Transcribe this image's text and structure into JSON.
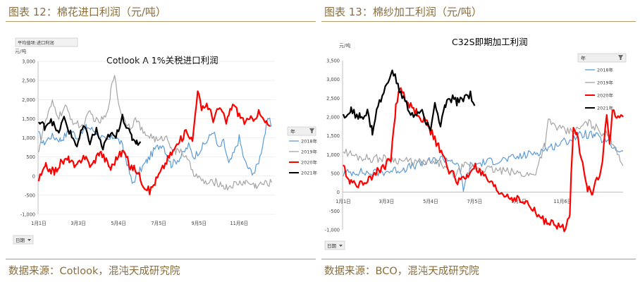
{
  "left_figure": {
    "caption": "图表 12：棉花进口利润（元/吨）",
    "source": "数据来源：Cotlook，混沌天成研究院"
  },
  "right_figure": {
    "caption": "图表 13：棉纱加工利润（元/吨）",
    "source": "数据来源：BCO，混沌天成研究院"
  },
  "colors": {
    "caption": "#8a6d3b",
    "rule": "#b89a6a",
    "s2018": "#5b9bd5",
    "s2019": "#a5a5a5",
    "s2020": "#ff0000",
    "s2021": "#000000"
  },
  "chart_data": [
    {
      "type": "line",
      "title": "Cotlook A 1%关税进口利润",
      "top_button": "平均值项:进口利润",
      "ylabel": "元/吨",
      "ylim": [
        -1000,
        3000
      ],
      "yticks": [
        "3,000",
        "2,500",
        "2,000",
        "1,500",
        "1,000",
        "500",
        "0",
        "-500",
        "-1,000"
      ],
      "xticks": [
        "1月1日",
        "3月3日",
        "5月4日",
        "7月5日",
        "9月5日",
        "11月6日"
      ],
      "legend_header": "年",
      "filter_button": "日期",
      "grid": true,
      "legend_position": "right",
      "series": [
        {
          "name": "2018年",
          "color": "#5b9bd5",
          "anchors": [
            [
              1,
              1100
            ],
            [
              8,
              850
            ],
            [
              20,
              1050
            ],
            [
              35,
              950
            ],
            [
              50,
              1200
            ],
            [
              62,
              1000
            ],
            [
              75,
              1300
            ],
            [
              90,
              1150
            ],
            [
              105,
              900
            ],
            [
              118,
              1050
            ],
            [
              128,
              850
            ],
            [
              135,
              500
            ],
            [
              145,
              -200
            ],
            [
              155,
              100
            ],
            [
              168,
              400
            ],
            [
              180,
              700
            ],
            [
              192,
              850
            ],
            [
              205,
              300
            ],
            [
              220,
              500
            ],
            [
              232,
              800
            ],
            [
              240,
              500
            ],
            [
              250,
              700
            ],
            [
              262,
              950
            ],
            [
              270,
              1200
            ],
            [
              278,
              700
            ],
            [
              286,
              900
            ],
            [
              294,
              300
            ],
            [
              302,
              600
            ],
            [
              310,
              1000
            ],
            [
              318,
              400
            ],
            [
              326,
              150
            ],
            [
              334,
              100
            ],
            [
              342,
              500
            ],
            [
              348,
              1000
            ],
            [
              355,
              1500
            ],
            [
              360,
              1300
            ]
          ]
        },
        {
          "name": "2019年",
          "color": "#a5a5a5",
          "anchors": [
            [
              1,
              700
            ],
            [
              10,
              1350
            ],
            [
              22,
              1900
            ],
            [
              32,
              1550
            ],
            [
              42,
              1800
            ],
            [
              55,
              1400
            ],
            [
              68,
              1300
            ],
            [
              80,
              1650
            ],
            [
              92,
              1400
            ],
            [
              105,
              1550
            ],
            [
              112,
              2200
            ],
            [
              118,
              2700
            ],
            [
              124,
              1900
            ],
            [
              132,
              1500
            ],
            [
              142,
              1300
            ],
            [
              152,
              1500
            ],
            [
              162,
              1100
            ],
            [
              174,
              1050
            ],
            [
              186,
              900
            ],
            [
              196,
              1050
            ],
            [
              205,
              800
            ],
            [
              212,
              600
            ],
            [
              220,
              700
            ],
            [
              230,
              400
            ],
            [
              240,
              100
            ],
            [
              250,
              -100
            ],
            [
              262,
              -200
            ],
            [
              275,
              -150
            ],
            [
              290,
              -300
            ],
            [
              305,
              -200
            ],
            [
              320,
              -150
            ],
            [
              335,
              -250
            ],
            [
              348,
              -200
            ],
            [
              360,
              -170
            ]
          ]
        },
        {
          "name": "2020年",
          "color": "#ff0000",
          "anchors": [
            [
              1,
              -100
            ],
            [
              12,
              250
            ],
            [
              25,
              100
            ],
            [
              35,
              350
            ],
            [
              48,
              450
            ],
            [
              58,
              200
            ],
            [
              70,
              550
            ],
            [
              82,
              250
            ],
            [
              95,
              650
            ],
            [
              105,
              400
            ],
            [
              112,
              200
            ],
            [
              122,
              500
            ],
            [
              132,
              650
            ],
            [
              142,
              250
            ],
            [
              152,
              150
            ],
            [
              162,
              -200
            ],
            [
              172,
              -400
            ],
            [
              182,
              -100
            ],
            [
              192,
              200
            ],
            [
              200,
              450
            ],
            [
              210,
              700
            ],
            [
              220,
              950
            ],
            [
              230,
              1200
            ],
            [
              238,
              900
            ],
            [
              246,
              2300
            ],
            [
              252,
              1700
            ],
            [
              260,
              1900
            ],
            [
              270,
              1500
            ],
            [
              280,
              1800
            ],
            [
              290,
              1400
            ],
            [
              300,
              1900
            ],
            [
              310,
              1600
            ],
            [
              320,
              1400
            ],
            [
              330,
              1500
            ],
            [
              340,
              1650
            ],
            [
              350,
              1400
            ],
            [
              358,
              1300
            ]
          ]
        },
        {
          "name": "2021年",
          "color": "#000000",
          "anchors": [
            [
              1,
              1400
            ],
            [
              10,
              1300
            ],
            [
              20,
              1500
            ],
            [
              30,
              1100
            ],
            [
              40,
              1500
            ],
            [
              50,
              1100
            ],
            [
              60,
              800
            ],
            [
              70,
              1300
            ],
            [
              80,
              900
            ],
            [
              90,
              1200
            ],
            [
              100,
              700
            ],
            [
              110,
              1100
            ],
            [
              120,
              1000
            ],
            [
              130,
              1600
            ],
            [
              138,
              1200
            ],
            [
              145,
              1000
            ],
            [
              152,
              900
            ],
            [
              158,
              900
            ]
          ]
        }
      ]
    },
    {
      "type": "line",
      "title": "C32S即期加工利润",
      "ylabel": "元/吨",
      "ylim": [
        -1000,
        3500
      ],
      "yticks": [
        "3,500",
        "3,000",
        "2,500",
        "2,000",
        "1,500",
        "1,000",
        "500",
        "0",
        "-500",
        "-1,000"
      ],
      "xticks": [
        "1月1日",
        "3月3日",
        "5月4日",
        "7月5日",
        "9月5日",
        "11月6日"
      ],
      "legend_header": "年",
      "filter_button": "日期",
      "grid": false,
      "legend_position": "right",
      "series": [
        {
          "name": "2018年",
          "color": "#5b9bd5",
          "anchors": [
            [
              1,
              500
            ],
            [
              20,
              550
            ],
            [
              40,
              500
            ],
            [
              60,
              550
            ],
            [
              80,
              600
            ],
            [
              100,
              700
            ],
            [
              120,
              800
            ],
            [
              140,
              900
            ],
            [
              155,
              850
            ],
            [
              165,
              600
            ],
            [
              170,
              100
            ],
            [
              180,
              700
            ],
            [
              200,
              800
            ],
            [
              220,
              850
            ],
            [
              240,
              900
            ],
            [
              260,
              1000
            ],
            [
              280,
              1100
            ],
            [
              300,
              1250
            ],
            [
              320,
              1400
            ],
            [
              340,
              1550
            ],
            [
              355,
              1500
            ],
            [
              365,
              1400
            ],
            [
              375,
              1300
            ],
            [
              385,
              1150
            ],
            [
              395,
              1100
            ]
          ]
        },
        {
          "name": "2019年",
          "color": "#a5a5a5",
          "anchors": [
            [
              1,
              1100
            ],
            [
              20,
              950
            ],
            [
              40,
              900
            ],
            [
              60,
              900
            ],
            [
              80,
              850
            ],
            [
              100,
              800
            ],
            [
              120,
              780
            ],
            [
              140,
              760
            ],
            [
              150,
              500
            ],
            [
              160,
              450
            ],
            [
              170,
              700
            ],
            [
              190,
              650
            ],
            [
              210,
              600
            ],
            [
              230,
              550
            ],
            [
              250,
              500
            ],
            [
              270,
              450
            ],
            [
              285,
              1300
            ],
            [
              290,
              1900
            ],
            [
              300,
              1750
            ],
            [
              315,
              1600
            ],
            [
              330,
              1650
            ],
            [
              345,
              1850
            ],
            [
              355,
              1750
            ],
            [
              365,
              1600
            ],
            [
              375,
              1500
            ],
            [
              385,
              1200
            ],
            [
              395,
              700
            ]
          ]
        },
        {
          "name": "2020年",
          "color": "#ff0000",
          "anchors": [
            [
              1,
              700
            ],
            [
              10,
              300
            ],
            [
              25,
              200
            ],
            [
              45,
              500
            ],
            [
              60,
              700
            ],
            [
              68,
              900
            ],
            [
              75,
              2300
            ],
            [
              82,
              2800
            ],
            [
              90,
              2400
            ],
            [
              105,
              2100
            ],
            [
              120,
              1800
            ],
            [
              135,
              1200
            ],
            [
              150,
              600
            ],
            [
              162,
              300
            ],
            [
              175,
              400
            ],
            [
              185,
              700
            ],
            [
              195,
              500
            ],
            [
              205,
              300
            ],
            [
              220,
              0
            ],
            [
              240,
              -150
            ],
            [
              260,
              -300
            ],
            [
              280,
              -700
            ],
            [
              300,
              -900
            ],
            [
              315,
              -950
            ],
            [
              320,
              -500
            ],
            [
              325,
              1800
            ],
            [
              330,
              1600
            ],
            [
              338,
              700
            ],
            [
              345,
              100
            ],
            [
              352,
              0
            ],
            [
              360,
              400
            ],
            [
              366,
              800
            ],
            [
              372,
              2100
            ],
            [
              376,
              1200
            ],
            [
              380,
              2100
            ],
            [
              390,
              2050
            ],
            [
              395,
              2000
            ]
          ]
        },
        {
          "name": "2021年",
          "color": "#000000",
          "anchors": [
            [
              1,
              2000
            ],
            [
              12,
              2150
            ],
            [
              25,
              2000
            ],
            [
              35,
              2100
            ],
            [
              42,
              1600
            ],
            [
              50,
              2300
            ],
            [
              58,
              2600
            ],
            [
              66,
              3100
            ],
            [
              72,
              3150
            ],
            [
              80,
              2700
            ],
            [
              88,
              2400
            ],
            [
              96,
              2100
            ],
            [
              104,
              2000
            ],
            [
              112,
              2150
            ],
            [
              118,
              1900
            ],
            [
              124,
              1700
            ],
            [
              130,
              2300
            ],
            [
              138,
              1800
            ],
            [
              145,
              2300
            ],
            [
              155,
              2500
            ],
            [
              162,
              2400
            ],
            [
              170,
              2500
            ],
            [
              180,
              2600
            ],
            [
              186,
              2300
            ]
          ]
        }
      ]
    }
  ]
}
